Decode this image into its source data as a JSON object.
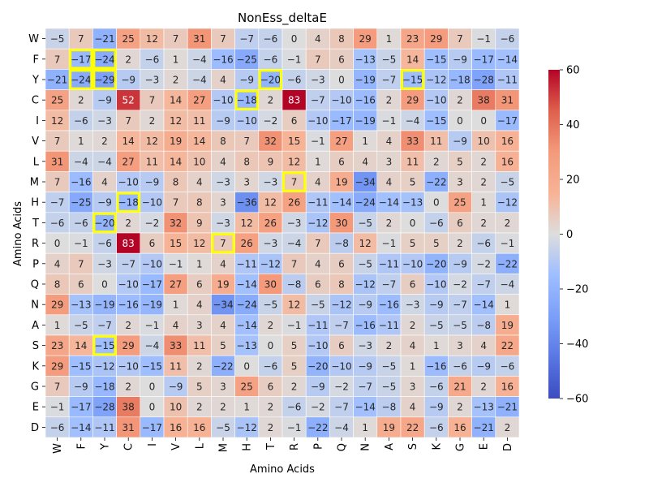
{
  "chart_data": {
    "type": "heatmap",
    "title": "NonEss_deltaE",
    "xlabel": "Amino Acids",
    "ylabel": "Amino Acids",
    "x_categories": [
      "W",
      "F",
      "Y",
      "C",
      "I",
      "V",
      "L",
      "M",
      "H",
      "T",
      "R",
      "P",
      "Q",
      "N",
      "A",
      "S",
      "K",
      "G",
      "E",
      "D"
    ],
    "y_categories": [
      "W",
      "F",
      "Y",
      "C",
      "I",
      "V",
      "L",
      "M",
      "H",
      "T",
      "R",
      "P",
      "Q",
      "N",
      "A",
      "S",
      "K",
      "G",
      "E",
      "D"
    ],
    "values": [
      [
        -5,
        7,
        -21,
        25,
        12,
        7,
        31,
        7,
        -7,
        -6,
        0,
        4,
        8,
        29,
        1,
        23,
        29,
        7,
        -1,
        -6
      ],
      [
        7,
        -17,
        -24,
        2,
        -6,
        1,
        -4,
        -16,
        -25,
        -6,
        -1,
        7,
        6,
        -13,
        -5,
        14,
        -15,
        -9,
        -17,
        -14
      ],
      [
        -21,
        -24,
        -29,
        -9,
        -3,
        2,
        -4,
        4,
        -9,
        -20,
        -6,
        -3,
        0,
        -19,
        -7,
        -15,
        -12,
        -18,
        -28,
        -11
      ],
      [
        25,
        2,
        -9,
        52,
        7,
        14,
        27,
        -10,
        -18,
        2,
        83,
        -7,
        -10,
        -16,
        2,
        29,
        -10,
        2,
        38,
        31
      ],
      [
        12,
        -6,
        -3,
        7,
        2,
        12,
        11,
        -9,
        -10,
        -2,
        6,
        -10,
        -17,
        -19,
        -1,
        -4,
        -15,
        0,
        0,
        -17
      ],
      [
        7,
        1,
        2,
        14,
        12,
        19,
        14,
        8,
        7,
        32,
        15,
        -1,
        27,
        1,
        4,
        33,
        11,
        -9,
        10,
        16
      ],
      [
        31,
        -4,
        -4,
        27,
        11,
        14,
        10,
        4,
        8,
        9,
        12,
        1,
        6,
        4,
        3,
        11,
        2,
        5,
        2,
        16
      ],
      [
        7,
        -16,
        4,
        -10,
        -9,
        8,
        4,
        -3,
        3,
        -3,
        7,
        4,
        19,
        -34,
        4,
        5,
        -22,
        3,
        2,
        -5
      ],
      [
        -7,
        -25,
        -9,
        -18,
        -10,
        7,
        8,
        3,
        -36,
        12,
        26,
        -11,
        -14,
        -24,
        -14,
        -13,
        0,
        25,
        1,
        -12
      ],
      [
        -6,
        -6,
        -20,
        2,
        -2,
        32,
        9,
        -3,
        12,
        26,
        -3,
        -12,
        30,
        -5,
        2,
        0,
        -6,
        6,
        2,
        2
      ],
      [
        0,
        -1,
        -6,
        83,
        6,
        15,
        12,
        7,
        26,
        -3,
        -4,
        7,
        -8,
        12,
        -1,
        5,
        5,
        2,
        -6,
        -1
      ],
      [
        4,
        7,
        -3,
        -7,
        -10,
        -1,
        1,
        4,
        -11,
        -12,
        7,
        4,
        6,
        -5,
        -11,
        -10,
        -20,
        -9,
        -2,
        -22
      ],
      [
        8,
        6,
        0,
        -10,
        -17,
        27,
        6,
        19,
        -14,
        30,
        -8,
        6,
        8,
        -12,
        -7,
        6,
        -10,
        -2,
        -7,
        -4
      ],
      [
        29,
        -13,
        -19,
        -16,
        -19,
        1,
        4,
        -34,
        -24,
        -5,
        12,
        -5,
        -12,
        -9,
        -16,
        -3,
        -9,
        -7,
        -14,
        1
      ],
      [
        1,
        -5,
        -7,
        2,
        -1,
        4,
        3,
        4,
        -14,
        2,
        -1,
        -11,
        -7,
        -16,
        -11,
        2,
        -5,
        -5,
        -8,
        19
      ],
      [
        23,
        14,
        -15,
        29,
        -4,
        33,
        11,
        5,
        -13,
        0,
        5,
        -10,
        6,
        -3,
        2,
        4,
        1,
        3,
        4,
        22
      ],
      [
        29,
        -15,
        -12,
        -10,
        -15,
        11,
        2,
        -22,
        0,
        -6,
        5,
        -20,
        -10,
        -9,
        -5,
        1,
        -16,
        -6,
        -9,
        -6
      ],
      [
        7,
        -9,
        -18,
        2,
        0,
        -9,
        5,
        3,
        25,
        6,
        2,
        -9,
        -2,
        -7,
        -5,
        3,
        -6,
        21,
        2,
        16
      ],
      [
        -1,
        -17,
        -28,
        38,
        0,
        10,
        2,
        2,
        1,
        2,
        -6,
        -2,
        -7,
        -14,
        -8,
        4,
        -9,
        2,
        -13,
        -21
      ],
      [
        -6,
        -14,
        -11,
        31,
        -17,
        16,
        16,
        -5,
        -12,
        2,
        -1,
        -22,
        -4,
        1,
        19,
        22,
        -6,
        16,
        -21,
        2
      ]
    ],
    "highlighted_cells": [
      [
        1,
        1
      ],
      [
        1,
        2
      ],
      [
        2,
        1
      ],
      [
        2,
        2
      ],
      [
        2,
        9
      ],
      [
        2,
        15
      ],
      [
        3,
        8
      ],
      [
        7,
        10
      ],
      [
        8,
        3
      ],
      [
        9,
        2
      ],
      [
        10,
        7
      ],
      [
        15,
        2
      ]
    ],
    "highlight_color": "#ffff00",
    "colormap": "coolwarm",
    "vmin": -60,
    "vmax": 60,
    "colorbar_ticks": [
      60,
      40,
      20,
      0,
      -20,
      -40,
      -60
    ],
    "colorbar_tick_labels": [
      "60",
      "40",
      "20",
      "0",
      "−20",
      "−40",
      "−60"
    ],
    "grid": false,
    "legend": "colorbar-right"
  }
}
